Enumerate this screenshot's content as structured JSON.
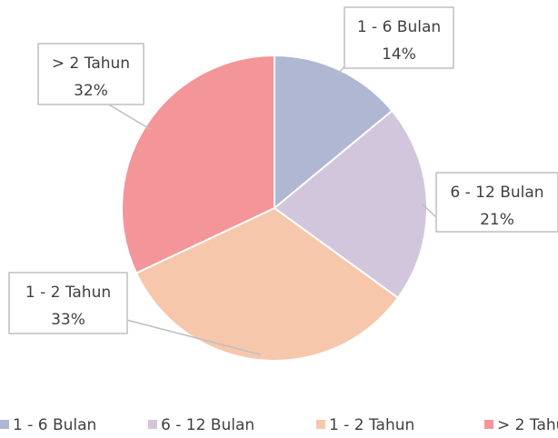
{
  "chart_data": {
    "type": "pie",
    "categories": [
      "1 - 6 Bulan",
      "6 -  12 Bulan",
      "1 - 2 Tahun",
      "> 2 Tahun"
    ],
    "values": [
      14,
      21,
      33,
      32
    ],
    "value_labels": [
      "14%",
      "21%",
      "33%",
      "32%"
    ],
    "colors": [
      "#b0b7d3",
      "#d2c6dc",
      "#f6c7ab",
      "#f4959a"
    ],
    "legend": "bottom"
  }
}
